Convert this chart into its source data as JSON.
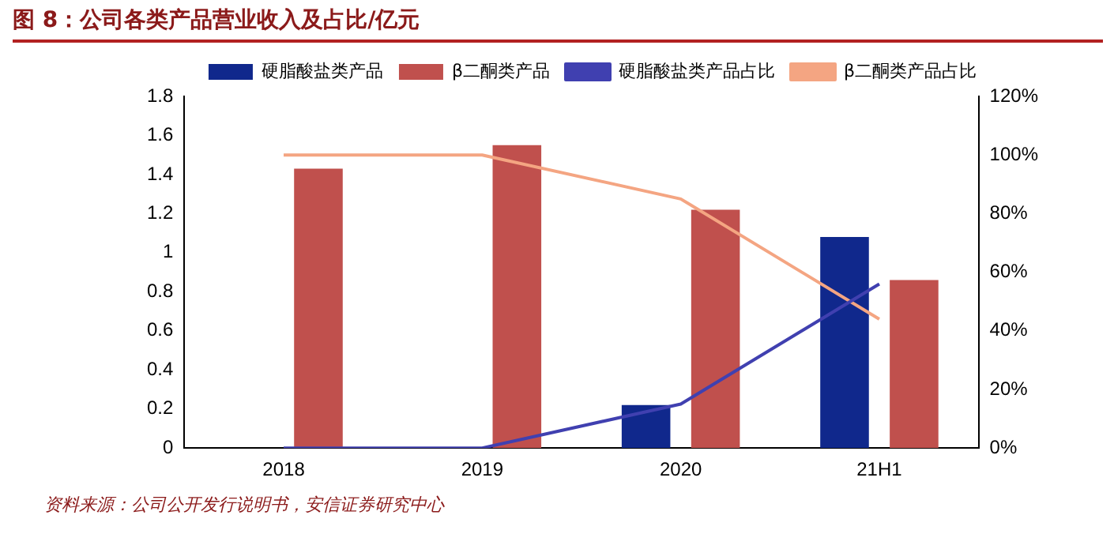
{
  "chart_data": {
    "type": "bar",
    "title": "图 8：公司各类产品营业收入及占比/亿元",
    "categories": [
      "2018",
      "2019",
      "2020",
      "21H1"
    ],
    "series": [
      {
        "name": "硬脂酸盐类产品",
        "color": "#10288c",
        "values": [
          0,
          0,
          0.22,
          1.08
        ]
      },
      {
        "name": "β二酮类产品",
        "color": "#c0504d",
        "values": [
          1.43,
          1.55,
          1.22,
          0.86
        ]
      },
      {
        "name": "硬脂酸盐类产品占比",
        "type": "line",
        "axis": "y2",
        "color": "#4040b0",
        "values": [
          0,
          0,
          15,
          56
        ]
      },
      {
        "name": "β二酮类产品占比",
        "type": "line",
        "axis": "y2",
        "color": "#f4a582",
        "values": [
          100,
          100,
          85,
          44
        ]
      }
    ],
    "ylim": [
      0,
      1.8
    ],
    "yticks": [
      0,
      0.2,
      0.4,
      0.6,
      0.8,
      1,
      1.2,
      1.4,
      1.6,
      1.8
    ],
    "y2lim": [
      0,
      120
    ],
    "y2ticks": [
      {
        "value": 0,
        "label": "0%"
      },
      {
        "value": 20,
        "label": "20%"
      },
      {
        "value": 40,
        "label": "40%"
      },
      {
        "value": 60,
        "label": "60%"
      },
      {
        "value": 80,
        "label": "80%"
      },
      {
        "value": 100,
        "label": "100%"
      },
      {
        "value": 120,
        "label": "120%"
      }
    ],
    "legend": "top",
    "grid": false,
    "marker": "none",
    "annotations": [
      "资料来源：公司公开发行说明书，安信证券研究中心"
    ]
  }
}
